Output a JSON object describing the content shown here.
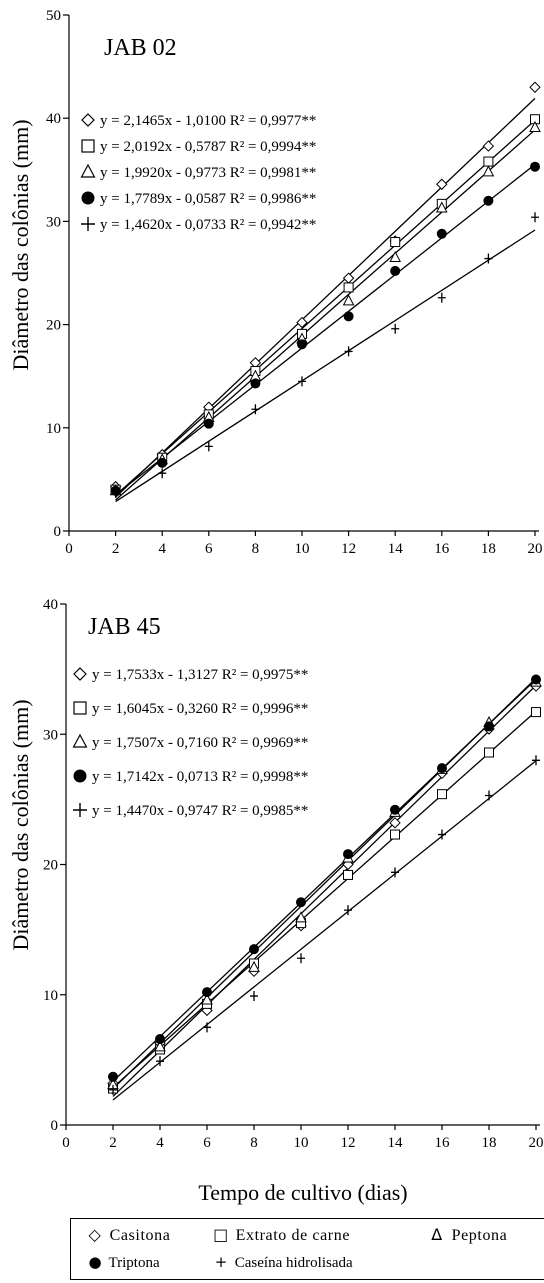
{
  "x_axis_label": "Tempo de cultivo (dias)",
  "y_axis_label": "Diâmetro das colônias (mm)",
  "legend": [
    {
      "symbol": "◇",
      "label": "Casitona"
    },
    {
      "symbol": "□",
      "label": "Extrato de carne"
    },
    {
      "symbol": "Δ",
      "label": "Peptona"
    },
    {
      "symbol": "●",
      "label": "Triptona"
    },
    {
      "symbol": "+",
      "label": "Caseína hidrolisada"
    }
  ],
  "chart_data": [
    {
      "type": "scatter",
      "title": "JAB 02",
      "x": [
        2,
        4,
        6,
        8,
        10,
        12,
        14,
        16,
        18,
        20
      ],
      "xlim": [
        0,
        20
      ],
      "ylim": [
        0,
        50
      ],
      "xticks": [
        "0",
        "2",
        "4",
        "6",
        "8",
        "10",
        "12",
        "14",
        "16",
        "18",
        "20"
      ],
      "yticks": [
        "0",
        "10",
        "20",
        "30",
        "40",
        "50"
      ],
      "series": [
        {
          "name": "Casitona",
          "marker": "diamond",
          "values": [
            4.3,
            7.4,
            12.0,
            16.3,
            20.2,
            24.5,
            28.1,
            33.6,
            37.3,
            43.0
          ],
          "slope": 2.1465,
          "intercept": -1.01,
          "equation": "y = 2,1465x - 1,0100 R² = 0,9977**"
        },
        {
          "name": "Extrato de carne",
          "marker": "square",
          "values": [
            4.0,
            7.1,
            11.3,
            15.5,
            19.1,
            23.6,
            28.0,
            31.7,
            35.8,
            39.9
          ],
          "slope": 2.0192,
          "intercept": -0.5787,
          "equation": "y = 2,0192x - 0,5787 R² = 0,9994**"
        },
        {
          "name": "Peptona",
          "marker": "triangle",
          "values": [
            3.9,
            6.9,
            11.0,
            15.0,
            18.6,
            22.3,
            26.5,
            31.3,
            34.8,
            39.1
          ],
          "slope": 1.992,
          "intercept": -0.9773,
          "equation": "y = 1,9920x - 0,9773 R² = 0,9981**"
        },
        {
          "name": "Triptona",
          "marker": "circle",
          "values": [
            3.9,
            6.6,
            10.4,
            14.3,
            18.1,
            20.8,
            25.2,
            28.8,
            32.0,
            35.3
          ],
          "slope": 1.7789,
          "intercept": -0.0587,
          "equation": "y = 1,7789x - 0,0587 R² = 0,9986**"
        },
        {
          "name": "Caseína hidrolisada",
          "marker": "plus",
          "values": [
            3.7,
            5.6,
            8.2,
            11.8,
            14.5,
            17.4,
            19.6,
            22.6,
            26.4,
            30.4
          ],
          "slope": 1.462,
          "intercept": -0.0733,
          "equation": "y = 1,4620x - 0,0733 R² = 0,9942**"
        }
      ]
    },
    {
      "type": "scatter",
      "title": "JAB 45",
      "x": [
        2,
        4,
        6,
        8,
        10,
        12,
        14,
        16,
        18,
        20
      ],
      "xlim": [
        0,
        20
      ],
      "ylim": [
        0,
        40
      ],
      "xticks": [
        "0",
        "2",
        "4",
        "6",
        "8",
        "10",
        "12",
        "14",
        "16",
        "18",
        "20"
      ],
      "yticks": [
        "0",
        "10",
        "20",
        "30",
        "40"
      ],
      "series": [
        {
          "name": "Casitona",
          "marker": "diamond",
          "values": [
            3.2,
            6.3,
            8.8,
            11.8,
            15.3,
            20.0,
            23.2,
            27.0,
            30.4,
            33.7
          ],
          "slope": 1.7533,
          "intercept": -1.3127,
          "equation": "y = 1,7533x - 1,3127 R² = 0,9975**"
        },
        {
          "name": "Extrato de carne",
          "marker": "square",
          "values": [
            2.8,
            5.8,
            9.3,
            12.4,
            15.5,
            19.2,
            22.3,
            25.4,
            28.6,
            31.7
          ],
          "slope": 1.6045,
          "intercept": -0.326,
          "equation": "y = 1,6045x - 0,3260 R² = 0,9996**"
        },
        {
          "name": "Peptona",
          "marker": "triangle",
          "values": [
            3.1,
            6.0,
            9.6,
            12.1,
            15.9,
            20.5,
            24.0,
            27.3,
            30.9,
            34.0
          ],
          "slope": 1.7507,
          "intercept": -0.716,
          "equation": "y = 1,7507x - 0,7160 R² = 0,9969**"
        },
        {
          "name": "Triptona",
          "marker": "circle",
          "values": [
            3.7,
            6.6,
            10.2,
            13.5,
            17.1,
            20.8,
            24.2,
            27.4,
            30.6,
            34.2
          ],
          "slope": 1.7142,
          "intercept": -0.0713,
          "equation": "y = 1,7142x - 0,0713 R² = 0,9998**"
        },
        {
          "name": "Caseína hidrolisada",
          "marker": "plus",
          "values": [
            2.7,
            4.9,
            7.5,
            9.9,
            12.8,
            16.5,
            19.4,
            22.3,
            25.3,
            28.0
          ],
          "slope": 1.447,
          "intercept": -0.9747,
          "equation": "y = 1,4470x - 0,9747 R² = 0,9985**"
        }
      ]
    }
  ]
}
